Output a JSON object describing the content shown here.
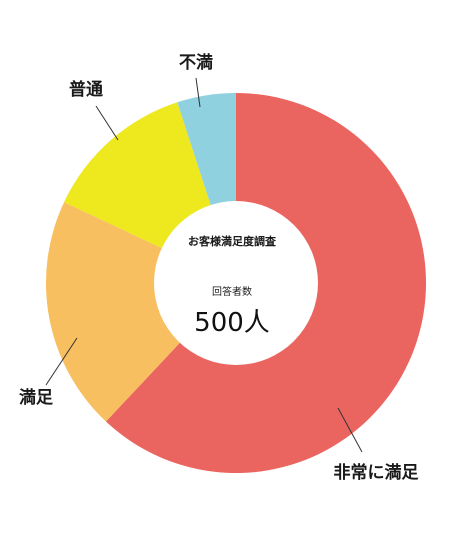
{
  "chart_data": {
    "type": "pie",
    "center_title": "お客様満足度調査",
    "center_subtitle": "回答者数",
    "center_value": "500人",
    "slices": [
      {
        "label": "非常に満足",
        "value": 62,
        "color": "#eb6560"
      },
      {
        "label": "満足",
        "value": 20,
        "color": "#f8bf60"
      },
      {
        "label": "普通",
        "value": 13,
        "color": "#eee81e"
      },
      {
        "label": "不満",
        "value": 5,
        "color": "#8fd1df"
      }
    ]
  }
}
